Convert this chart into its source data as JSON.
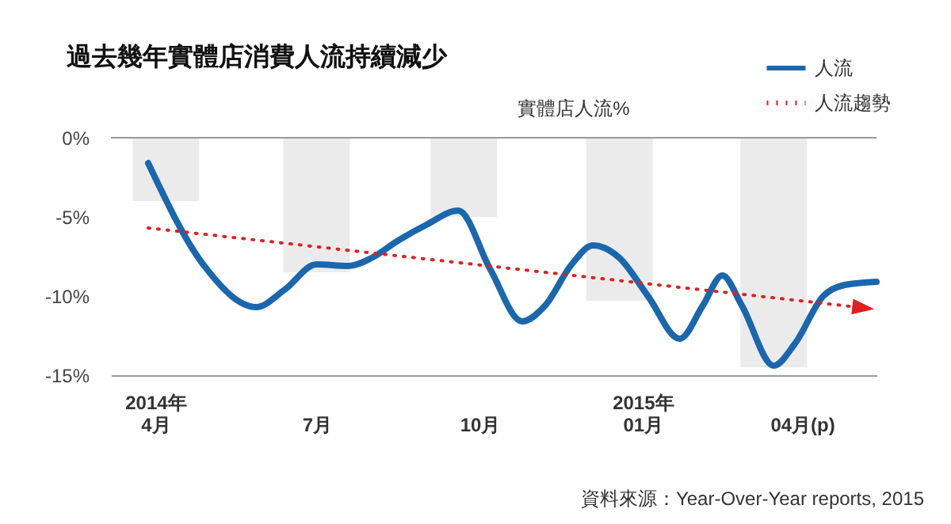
{
  "chart_data": {
    "type": "line",
    "title": "過去幾年實體店消費人流持續減少",
    "ylabel": "實體店人流%",
    "xlim": [
      "2014-03-07",
      "2015-05-13"
    ],
    "xticks": [
      {
        "value": "2014-04",
        "label": "2014年\n4月"
      },
      {
        "value": "2014-07",
        "label": "7月"
      },
      {
        "value": "2014-10",
        "label": "10月"
      },
      {
        "value": "2015-01",
        "label": "2015年\n01月"
      },
      {
        "value": "2015-04",
        "label": "04月(p)"
      }
    ],
    "ylim": [
      -15,
      0
    ],
    "yticks": [
      {
        "value": 0,
        "label": "0%"
      },
      {
        "value": -5,
        "label": "-5%"
      },
      {
        "value": -10,
        "label": "-10%"
      },
      {
        "value": -15,
        "label": "-15%"
      }
    ],
    "legend": "top right",
    "series": [
      {
        "type": "bar",
        "color": "#ebebeb",
        "x": [
          "2014-04-07",
          "2014-07-01",
          "2014-09-22",
          "2014-12-19",
          "2015-03-16"
        ],
        "values": [
          -4.0,
          -8.5,
          -5.0,
          -10.3,
          -14.5
        ]
      },
      {
        "name": "人流",
        "color": "#1a67ad",
        "line_style": "solid",
        "x": [
          "2014-03-28",
          "2014-04-28",
          "2014-05-28",
          "2014-06-13",
          "2014-07-01",
          "2014-07-19",
          "2014-08-01",
          "2014-08-16",
          "2014-09-01",
          "2014-09-19",
          "2014-10-07",
          "2014-10-25",
          "2014-11-07",
          "2014-11-22",
          "2014-12-04",
          "2014-12-19",
          "2015-01-04",
          "2015-01-22",
          "2015-02-04",
          "2015-02-15",
          "2015-02-26",
          "2015-03-16",
          "2015-03-28",
          "2015-04-13",
          "2015-04-25",
          "2015-05-13"
        ],
        "values": [
          -1.6,
          -8.0,
          -10.7,
          -9.6,
          -8.0,
          -8.1,
          -7.6,
          -6.5,
          -5.5,
          -4.6,
          -8.3,
          -11.6,
          -10.6,
          -8.0,
          -6.8,
          -7.6,
          -10.0,
          -12.7,
          -10.6,
          -8.7,
          -10.6,
          -14.4,
          -13.0,
          -10.0,
          -9.3,
          -9.1
        ]
      },
      {
        "name": "人流趨勢",
        "color": "#e02020",
        "line_style": "dotted",
        "x": [
          "2014-03-28",
          "2015-05-10"
        ],
        "values": [
          -5.7,
          -10.8
        ]
      }
    ],
    "annotations": [
      "資料來源：Year-Over-Year reports, 2015"
    ]
  }
}
